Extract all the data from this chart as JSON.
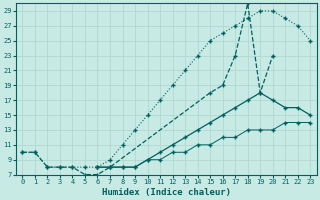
{
  "xlabel": "Humidex (Indice chaleur)",
  "bg_color": "#c8eae4",
  "grid_color": "#b0d8d0",
  "line_color": "#006060",
  "xlim": [
    -0.5,
    23.5
  ],
  "ylim": [
    7,
    30
  ],
  "xticks": [
    0,
    1,
    2,
    3,
    4,
    5,
    6,
    7,
    8,
    9,
    10,
    11,
    12,
    13,
    14,
    15,
    16,
    17,
    18,
    19,
    20,
    21,
    22,
    23
  ],
  "yticks": [
    7,
    9,
    11,
    13,
    15,
    17,
    19,
    21,
    23,
    25,
    27,
    29
  ],
  "line1": {
    "x": [
      0,
      1,
      2,
      3,
      4,
      5,
      6,
      7,
      8,
      9,
      10,
      11,
      12,
      13,
      14,
      15,
      16,
      17,
      18,
      19,
      20,
      21,
      22,
      23
    ],
    "y": [
      10,
      10,
      8,
      8,
      8,
      8,
      8,
      9,
      11,
      13,
      15,
      17,
      19,
      21,
      23,
      25,
      26,
      27,
      28,
      29,
      29,
      28,
      27,
      25
    ]
  },
  "line2": {
    "x": [
      0,
      1,
      2,
      3,
      4,
      5,
      6,
      7,
      15,
      16,
      17,
      18,
      19,
      20
    ],
    "y": [
      10,
      10,
      8,
      8,
      8,
      7,
      7,
      8,
      18,
      19,
      23,
      30,
      18,
      23
    ]
  },
  "line3": {
    "x": [
      6,
      7,
      8,
      9,
      10,
      11,
      12,
      13,
      14,
      15,
      16,
      17,
      18,
      19,
      20,
      21,
      22,
      23
    ],
    "y": [
      8,
      8,
      8,
      8,
      9,
      10,
      11,
      12,
      13,
      14,
      15,
      16,
      17,
      18,
      17,
      16,
      16,
      15
    ]
  },
  "line4": {
    "x": [
      6,
      7,
      8,
      9,
      10,
      11,
      12,
      13,
      14,
      15,
      16,
      17,
      18,
      19,
      20,
      21,
      22,
      23
    ],
    "y": [
      8,
      8,
      8,
      8,
      9,
      9,
      10,
      10,
      11,
      11,
      12,
      12,
      13,
      13,
      13,
      14,
      14,
      14
    ]
  }
}
